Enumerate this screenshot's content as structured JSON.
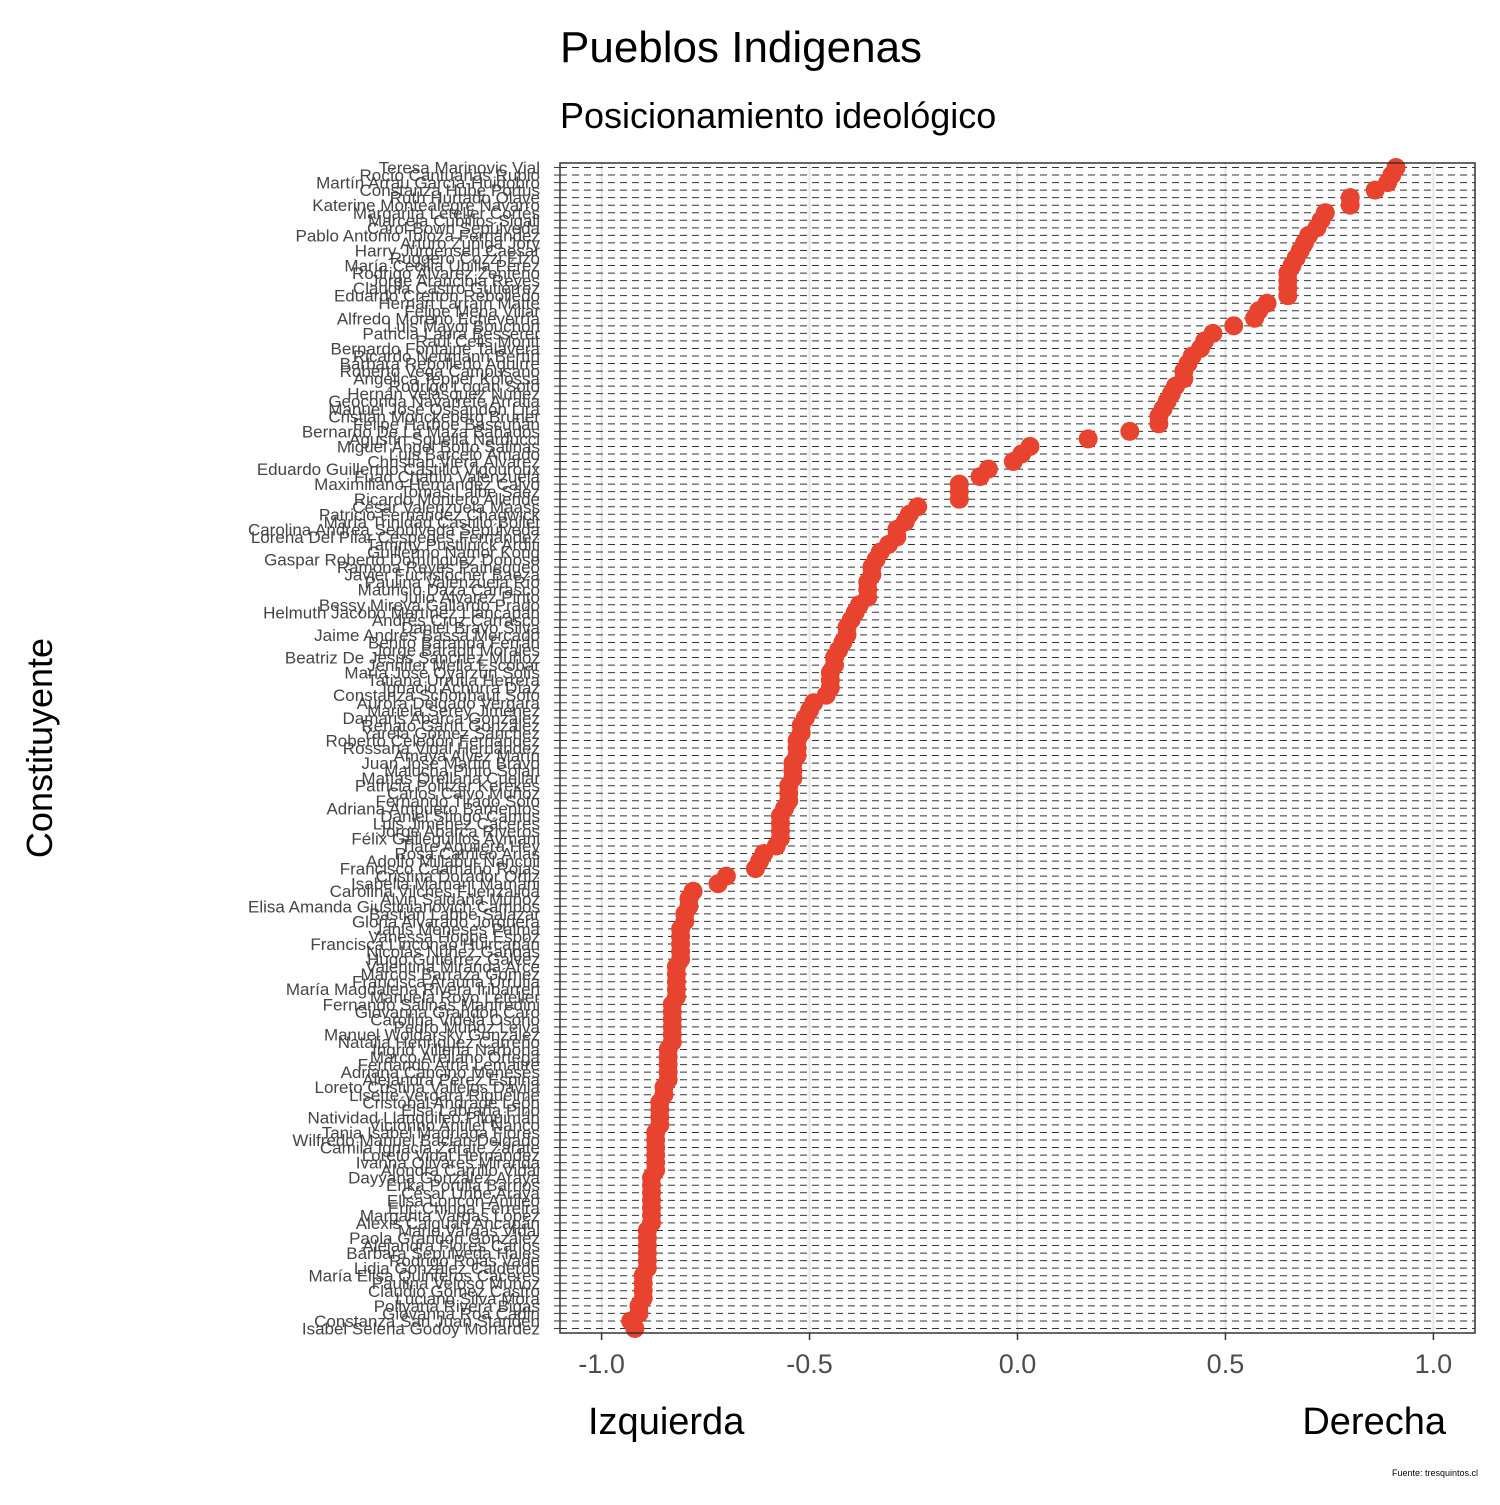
{
  "chart_data": {
    "type": "dot",
    "title": "Pueblos Indigenas",
    "subtitle": "Posicionamiento ideológico",
    "y_label": "Constituyente",
    "x_label_left": "Izquierda",
    "x_label_right": "Derecha",
    "caption": "Fuente: tresquintos.cl",
    "color": "#e8432e",
    "grid": true,
    "xlim": [
      -1.1,
      1.1
    ],
    "xticks": [
      {
        "value": -1,
        "label": "-1.0"
      },
      {
        "value": -0.5,
        "label": "-0.5"
      },
      {
        "value": 0,
        "label": "0.0"
      },
      {
        "value": 0.5,
        "label": "0.5"
      },
      {
        "value": 1,
        "label": "1.0"
      }
    ],
    "categories": [
      "Teresa Marinovic Vial",
      "Rocío Cantuarias Rubio",
      "Martín Arrau García-Huidobro",
      "Constanza Hube Portus",
      "Ruth Hurtado Olave",
      "Katerine Montealegre Navarro",
      "Margarita Letelier Cortés",
      "Marcela Cubillos Sigall",
      "Carol Bown Sepúlveda",
      "Pablo Antonio Toloza Fernández",
      "Arturo Zúñiga Jory",
      "Harry Jürgensen Caesar",
      "Ruggero Cozzi Elzo",
      "María Cecilia Ubilla Pérez",
      "Rodrigo Álvarez Zenteno",
      "Jorge Arancibia Reyes",
      "Claudia Castro Gutiérrez",
      "Eduardo Cretton Rebolledo",
      "Hernán Larraín Matte",
      "Felipe Mena Villar",
      "Alfredo Moreno Echeverría",
      "Luis Mayol Bouchon",
      "Patricia Labra Besserer",
      "Raúl Celis Montt",
      "Bernardo Fontaine Talavera",
      "Ricardo Neumann Bertín",
      "Bárbara Rebolledo Aguirre",
      "Roberto Vega Campusano",
      "Angélica Tepper Kolossa",
      "Rodrigo Logan Soto",
      "Hernán Velásquez Núñez",
      "Geoconda Navarrete Arratia",
      "Manuel José Ossandón Lira",
      "Cristián Monckeberg Bruner",
      "Felipe Harboe Bascuñán",
      "Bernardo De La Maza Bañados",
      "Agustín Squella Narducci",
      "Miguel Ángel Botto Salinas",
      "Luis Barceló Amado",
      "Christian Viera Álvarez",
      "Eduardo Guillermo Castillo Vigouroux",
      "Fuad Chahín Valenzuela",
      "Maximiliano Hernández Calvo",
      "Tomás Laibe Sáez",
      "Ricardo Montero Allende",
      "César Valenzuela Maass",
      "Patricio Fernández Chadwick",
      "María Trinidad Castillo Boilet",
      "Carolina Andrea Sepúlveda Sepúlveda",
      "Lorena Del Pilar Céspedes Fernández",
      "Tammy Pustilnick Arditi",
      "Guillermo Namor Kong",
      "Gaspar Roberto Domínguez Donoso",
      "Ramona Reyes Painequeo",
      "Javier Fuchslocher Baeza",
      "Paulina Valenzuela Río",
      "Mauricio Daza Carrasco",
      "Julio Álvarez Pinto",
      "Bessy Mireya Gallardo Prado",
      "Helmuth Jacobo Martínez Llancapán",
      "Andrés Cruz Carrasco",
      "Daniel Bravo Silva",
      "Jaime Andrés Bassa Mercado",
      "Benito Baranda Ferrán",
      "Jorge Baradit Morales",
      "Beatriz De Jesús Sánchez Muñoz",
      "Jennifer Mella Escobar",
      "María José Oyarzún Solís",
      "Tatiana Urrutia Herrera",
      "Ignacio Achurra Díaz",
      "Constanza Schonhaut Soto",
      "Aurora Delgado Vergara",
      "Mariela Serey Jiménez",
      "Damaris Abarca González",
      "Renato Garín González",
      "Yarela Gómez Sánchez",
      "Roberto Celedón Fernández",
      "Rossana Vidal Hernández",
      "Amaya Alvez Marín",
      "Juan José Martin Bravo",
      "Malucha Pinto Solari",
      "Matías Orellana Cuellar",
      "Patricia Politzer Kerekes",
      "Carlos Calvo Muñoz",
      "Fernando Tirado Soto",
      "Adriana Ampuero Barrientos",
      "Daniel Stingo Camus",
      "Luis Jiménez Cáceres",
      "Jorge Abarca Riveros",
      "Félix Galleguillos Aymani",
      "Tiare Aguilera Hey",
      "Rosa Catrileo Arias",
      "Adolfo Millabur Ñancuil",
      "Francisco Caamaño Rojas",
      "Cristina Dorador Ortiz",
      "Isabella Mamani Mamani",
      "Carolina Vilches Fuenzalida",
      "Alvin Saldaña Muñoz",
      "Elisa Amanda Giustinianovich Campos",
      "Bastián Labbé Salazar",
      "Gloria Alvarado Jorquera",
      "Janis Meneses Palma",
      "Vanessa Hoppe Espoz",
      "Francisca Linconao Huircapán",
      "Nicolás Núñez Gangas",
      "Hugo Gutiérrez Gálvez",
      "Valentina Miranda Arce",
      "Marcos Barraza Gómez",
      "Francisca Arauna Urrutia",
      "María Magdalena Rivera Iribarren",
      "Manuela Royo Letelier",
      "Fernando Salinas Manfredini",
      "Giovanna Grandón Caro",
      "Carolina Videla Osorio",
      "Pedro Muñoz Leiva",
      "Manuel Woldarsky González",
      "Natalia Henríquez Carreño",
      "Ingrid Villena Narbona",
      "Marco Arellano Ortega",
      "Fernando Atria Lemaitre",
      "Adriana Cancino Meneses",
      "Alejandra Pérez Espina",
      "Loreto Cristina Vallejos Dávila",
      "Lisette Vergara Riquelme",
      "Cristóbal Andrade León",
      "Elsa Labraña Pino",
      "Natividad Llanquileo Pilquimán",
      "Victorino Antilef Ñanco",
      "Tania Isabel Madriaga Flores",
      "Wilfredo Manuel Bacian Delgado",
      "Camila Ignacia Zárate Zárate",
      "Loreto Vidal Hernández",
      "Ivanna Olivares Miranda",
      "Alondra Carrillo Vidal",
      "Dayyana González Araya",
      "Erika Portilla Barrios",
      "César Uribe Araya",
      "Elisa Loncón Antileo",
      "Eric Chinga Ferreira",
      "Margarita Vargas López",
      "Alexis Caiguan Ancapán",
      "Mario Vargas Vidal",
      "Paola Grandón González",
      "Alejandra Flores Carlos",
      "Bárbara Sepúlveda Hales",
      "Rodrigo Rojas Vade",
      "Lidia González Calderón",
      "María Elisa Quinteros Cáceres",
      "Paulina Veloso Muñoz",
      "Claudio Gómez Castro",
      "Luciano Silva Mora",
      "Pollyana Rivera Bigas",
      "Giovanna Roa Cadin",
      "Constanza San Juan Standen",
      "Isabel Selena Godoy Monardez"
    ],
    "values": [
      0.91,
      0.9,
      0.89,
      0.86,
      0.8,
      0.8,
      0.74,
      0.73,
      0.72,
      0.7,
      0.69,
      0.68,
      0.67,
      0.66,
      0.65,
      0.65,
      0.65,
      0.65,
      0.6,
      0.58,
      0.57,
      0.52,
      0.47,
      0.45,
      0.44,
      0.42,
      0.41,
      0.4,
      0.4,
      0.38,
      0.37,
      0.36,
      0.35,
      0.34,
      0.34,
      0.27,
      0.17,
      0.03,
      0.01,
      -0.01,
      -0.07,
      -0.09,
      -0.14,
      -0.14,
      -0.14,
      -0.24,
      -0.26,
      -0.27,
      -0.29,
      -0.29,
      -0.31,
      -0.33,
      -0.34,
      -0.35,
      -0.35,
      -0.36,
      -0.36,
      -0.36,
      -0.38,
      -0.39,
      -0.4,
      -0.41,
      -0.41,
      -0.42,
      -0.43,
      -0.44,
      -0.44,
      -0.45,
      -0.45,
      -0.45,
      -0.46,
      -0.49,
      -0.5,
      -0.51,
      -0.52,
      -0.52,
      -0.53,
      -0.53,
      -0.53,
      -0.54,
      -0.54,
      -0.54,
      -0.55,
      -0.55,
      -0.55,
      -0.56,
      -0.57,
      -0.57,
      -0.57,
      -0.57,
      -0.58,
      -0.61,
      -0.62,
      -0.63,
      -0.7,
      -0.72,
      -0.78,
      -0.79,
      -0.79,
      -0.8,
      -0.8,
      -0.81,
      -0.81,
      -0.81,
      -0.81,
      -0.81,
      -0.82,
      -0.82,
      -0.82,
      -0.82,
      -0.82,
      -0.83,
      -0.83,
      -0.83,
      -0.83,
      -0.83,
      -0.83,
      -0.84,
      -0.84,
      -0.84,
      -0.84,
      -0.84,
      -0.85,
      -0.85,
      -0.86,
      -0.86,
      -0.86,
      -0.86,
      -0.87,
      -0.87,
      -0.87,
      -0.87,
      -0.87,
      -0.87,
      -0.88,
      -0.88,
      -0.88,
      -0.88,
      -0.88,
      -0.88,
      -0.88,
      -0.89,
      -0.89,
      -0.89,
      -0.89,
      -0.89,
      -0.89,
      -0.9,
      -0.9,
      -0.9,
      -0.9,
      -0.91,
      -0.91,
      -0.93,
      -0.92
    ]
  }
}
